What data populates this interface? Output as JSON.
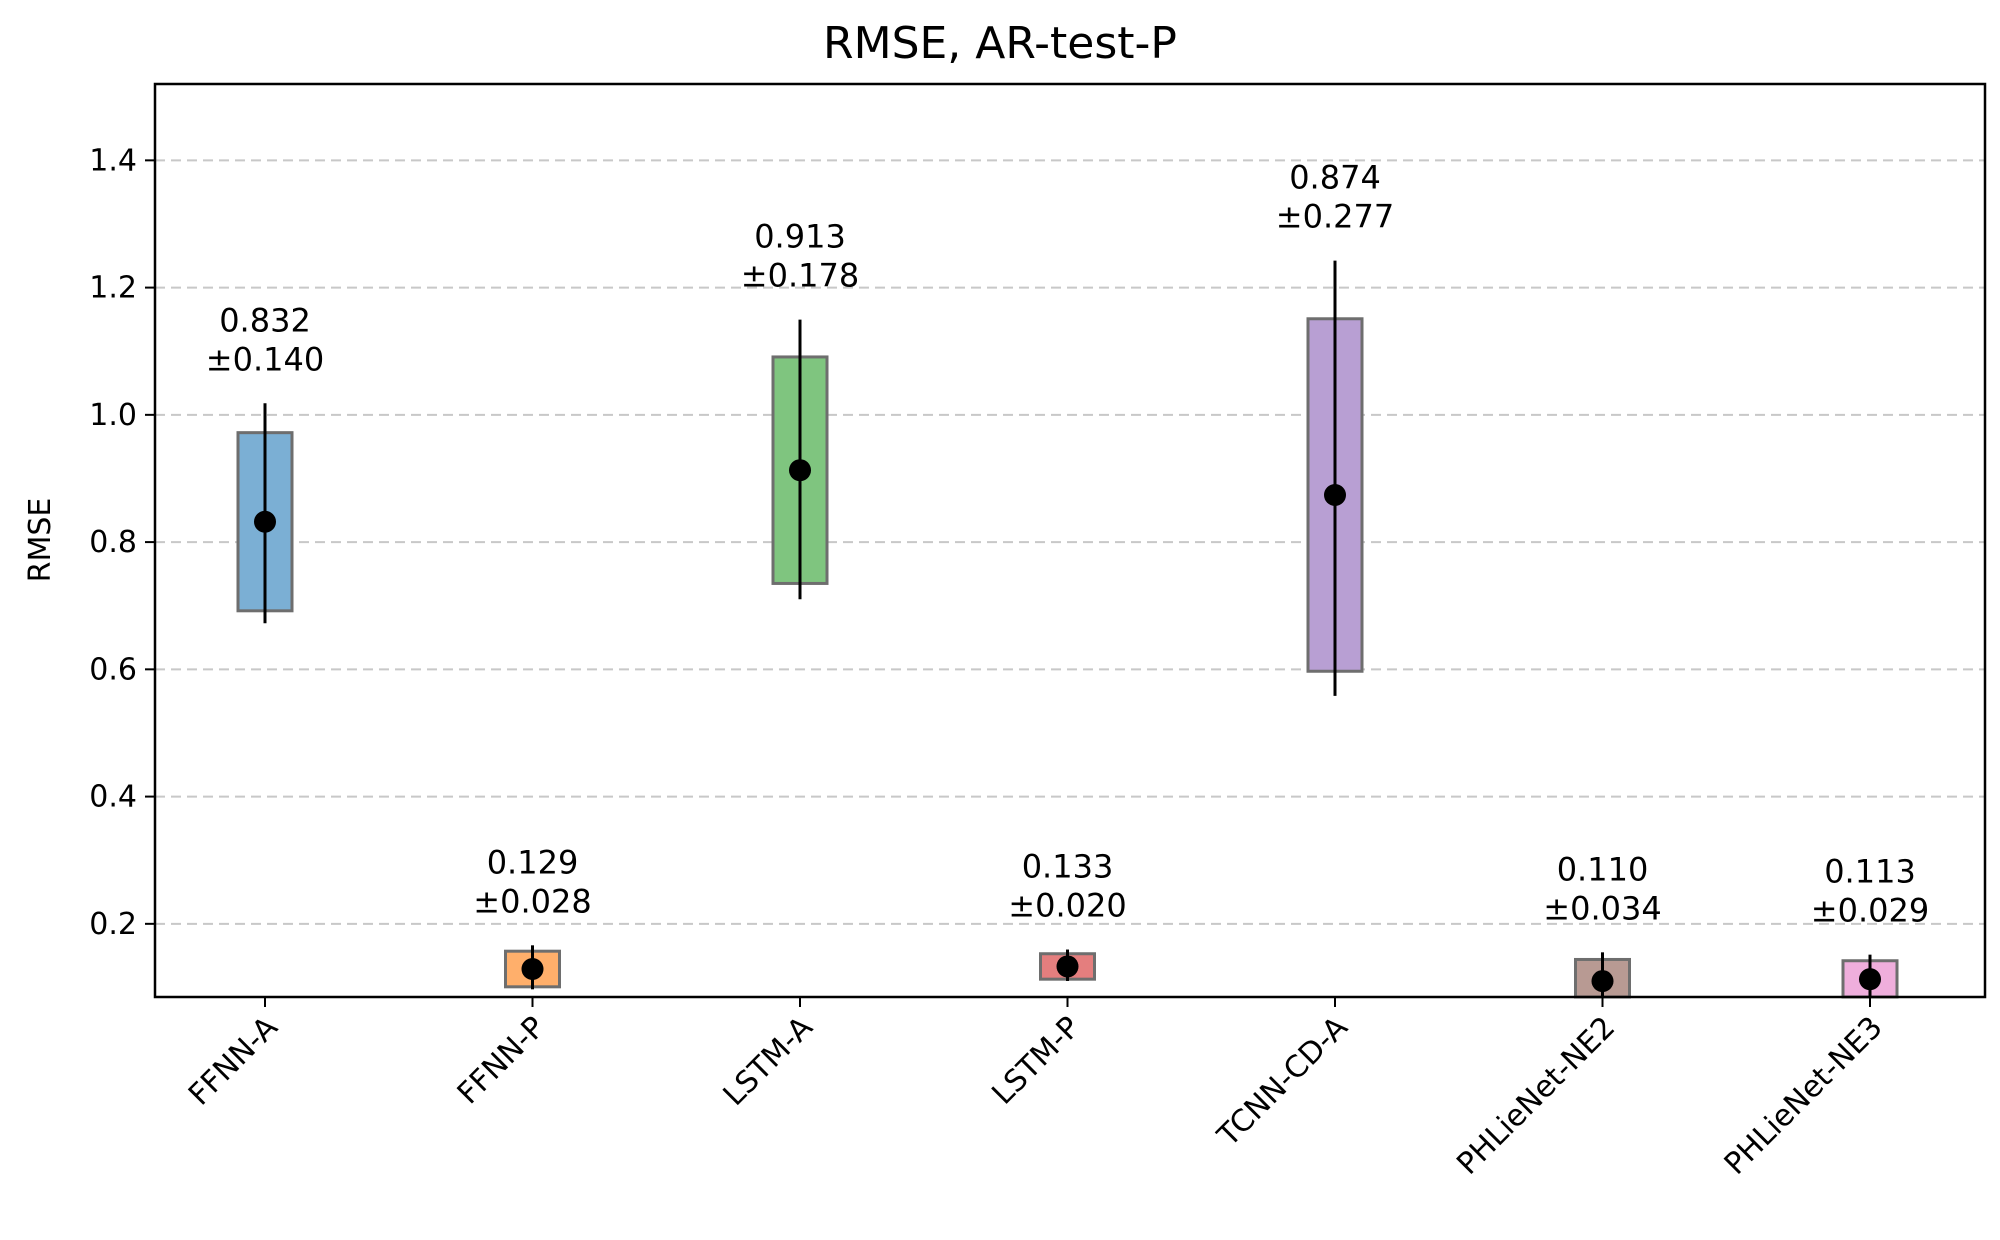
{
  "chart_data": {
    "type": "bar",
    "title": "RMSE, AR-test-P",
    "xlabel": "",
    "ylabel": "RMSE",
    "ylim": [
      0.085,
      1.52
    ],
    "yticks": [
      0.2,
      0.4,
      0.6,
      0.8,
      1.0,
      1.2,
      1.4
    ],
    "ytick_labels": [
      "0.2",
      "0.4",
      "0.6",
      "0.8",
      "1.0",
      "1.2",
      "1.4"
    ],
    "grid": "horizontal-dashed",
    "categories": [
      "FFNN-A",
      "FFNN-P",
      "LSTM-A",
      "LSTM-P",
      "TCNN-CD-A",
      "PHLieNet-NE2",
      "PHLieNet-NE3"
    ],
    "series": [
      {
        "means": [
          0.832,
          0.129,
          0.913,
          0.133,
          0.874,
          0.11,
          0.113
        ],
        "stds": [
          0.14,
          0.028,
          0.178,
          0.02,
          0.277,
          0.034,
          0.029
        ],
        "box_low": [
          0.692,
          0.101,
          0.735,
          0.113,
          0.597,
          0.076,
          0.084
        ],
        "box_high": [
          0.972,
          0.157,
          1.091,
          0.153,
          1.151,
          0.144,
          0.142
        ],
        "mean_labels": [
          "0.832",
          "0.129",
          "0.913",
          "0.133",
          "0.874",
          "0.110",
          "0.113"
        ],
        "std_labels": [
          "±0.140",
          "±0.028",
          "±0.178",
          "±0.020",
          "±0.277",
          "±0.034",
          "±0.029"
        ],
        "colors": [
          "#7bafd4",
          "#ffaf6b",
          "#7fc57f",
          "#e47e7e",
          "#b89fd3",
          "#b89a93",
          "#efaedc"
        ]
      }
    ]
  }
}
